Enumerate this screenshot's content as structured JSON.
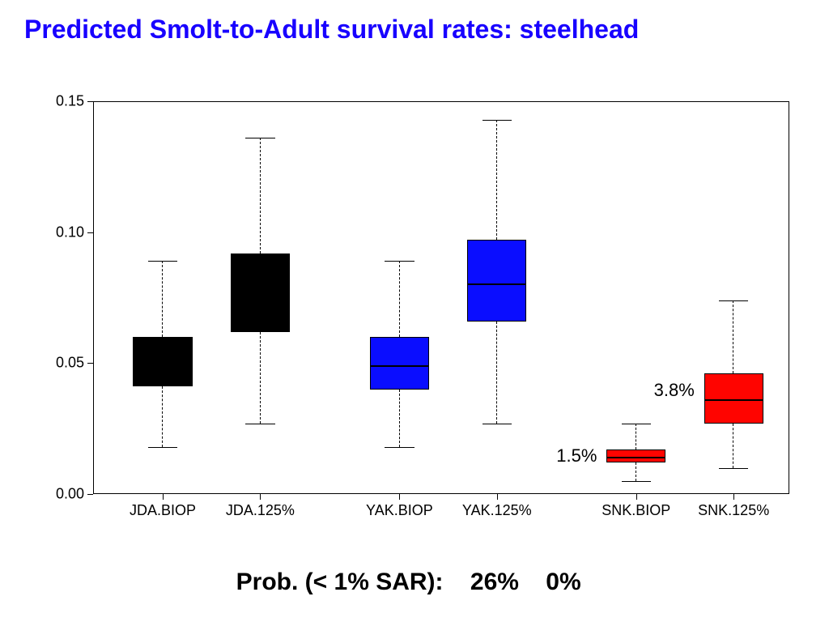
{
  "title": "Predicted Smolt-to-Adult survival rates: steelhead",
  "title_color": "#1800ff",
  "title_fontsize": 32,
  "background_color": "#ffffff",
  "chart": {
    "type": "boxplot",
    "ylim": [
      0.0,
      0.15
    ],
    "yticks": [
      0.0,
      0.05,
      0.1,
      0.15
    ],
    "ytick_labels": [
      "0.00",
      "0.05",
      "0.10",
      "0.15"
    ],
    "plot_border_color": "#000000",
    "whisker_style": "dashed",
    "categories": [
      "JDA.BIOP",
      "JDA.125%",
      "YAK.BIOP",
      "YAK.125%",
      "SNK.BIOP",
      "SNK.125%"
    ],
    "x_positions": [
      0.1,
      0.24,
      0.44,
      0.58,
      0.78,
      0.92
    ],
    "box_width": 0.085,
    "boxes": [
      {
        "fill": "#000000",
        "lower_whisker": 0.018,
        "q1": 0.041,
        "median": 0.051,
        "q3": 0.06,
        "upper_whisker": 0.089
      },
      {
        "fill": "#000000",
        "lower_whisker": 0.027,
        "q1": 0.062,
        "median": 0.079,
        "q3": 0.092,
        "upper_whisker": 0.136
      },
      {
        "fill": "#0a0dff",
        "lower_whisker": 0.018,
        "q1": 0.04,
        "median": 0.049,
        "q3": 0.06,
        "upper_whisker": 0.089
      },
      {
        "fill": "#0a0dff",
        "lower_whisker": 0.027,
        "q1": 0.066,
        "median": 0.08,
        "q3": 0.097,
        "upper_whisker": 0.143
      },
      {
        "fill": "#ff0400",
        "lower_whisker": 0.005,
        "q1": 0.012,
        "median": 0.014,
        "q3": 0.017,
        "upper_whisker": 0.027
      },
      {
        "fill": "#ff0400",
        "lower_whisker": 0.01,
        "q1": 0.027,
        "median": 0.036,
        "q3": 0.046,
        "upper_whisker": 0.074
      }
    ],
    "annotations": [
      {
        "text": "1.5%",
        "near_box": 4,
        "side": "left",
        "y": 0.015
      },
      {
        "text": "3.8%",
        "near_box": 5,
        "side": "left",
        "y": 0.04
      }
    ]
  },
  "footer": {
    "label": "Prob. (< 1% SAR):",
    "values": [
      "26%",
      "0%"
    ]
  }
}
